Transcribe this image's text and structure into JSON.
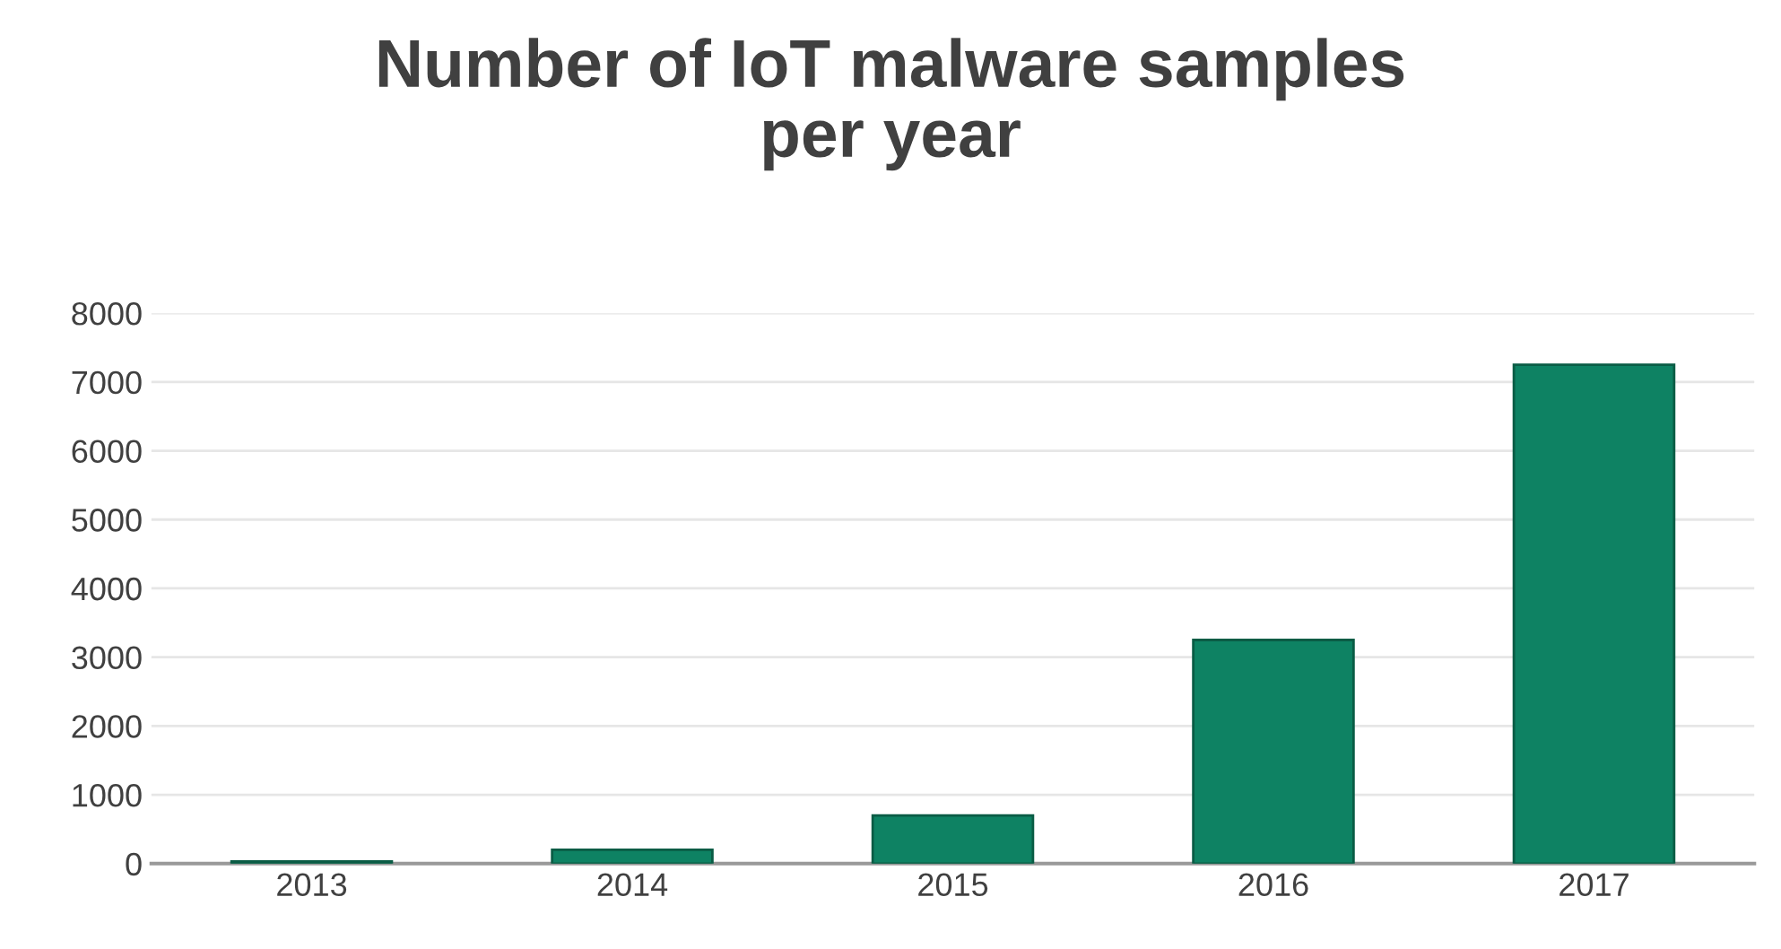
{
  "chart_data": {
    "type": "bar",
    "title": "Number of IoT malware samples\nper year",
    "categories": [
      "2013",
      "2014",
      "2015",
      "2016",
      "2017"
    ],
    "values": [
      30,
      200,
      700,
      3250,
      7250
    ],
    "color": "#0e8263",
    "ylim": [
      0,
      8000
    ],
    "yticks": [
      0,
      1000,
      2000,
      3000,
      4000,
      5000,
      6000,
      7000,
      8000
    ],
    "grid": "y"
  }
}
